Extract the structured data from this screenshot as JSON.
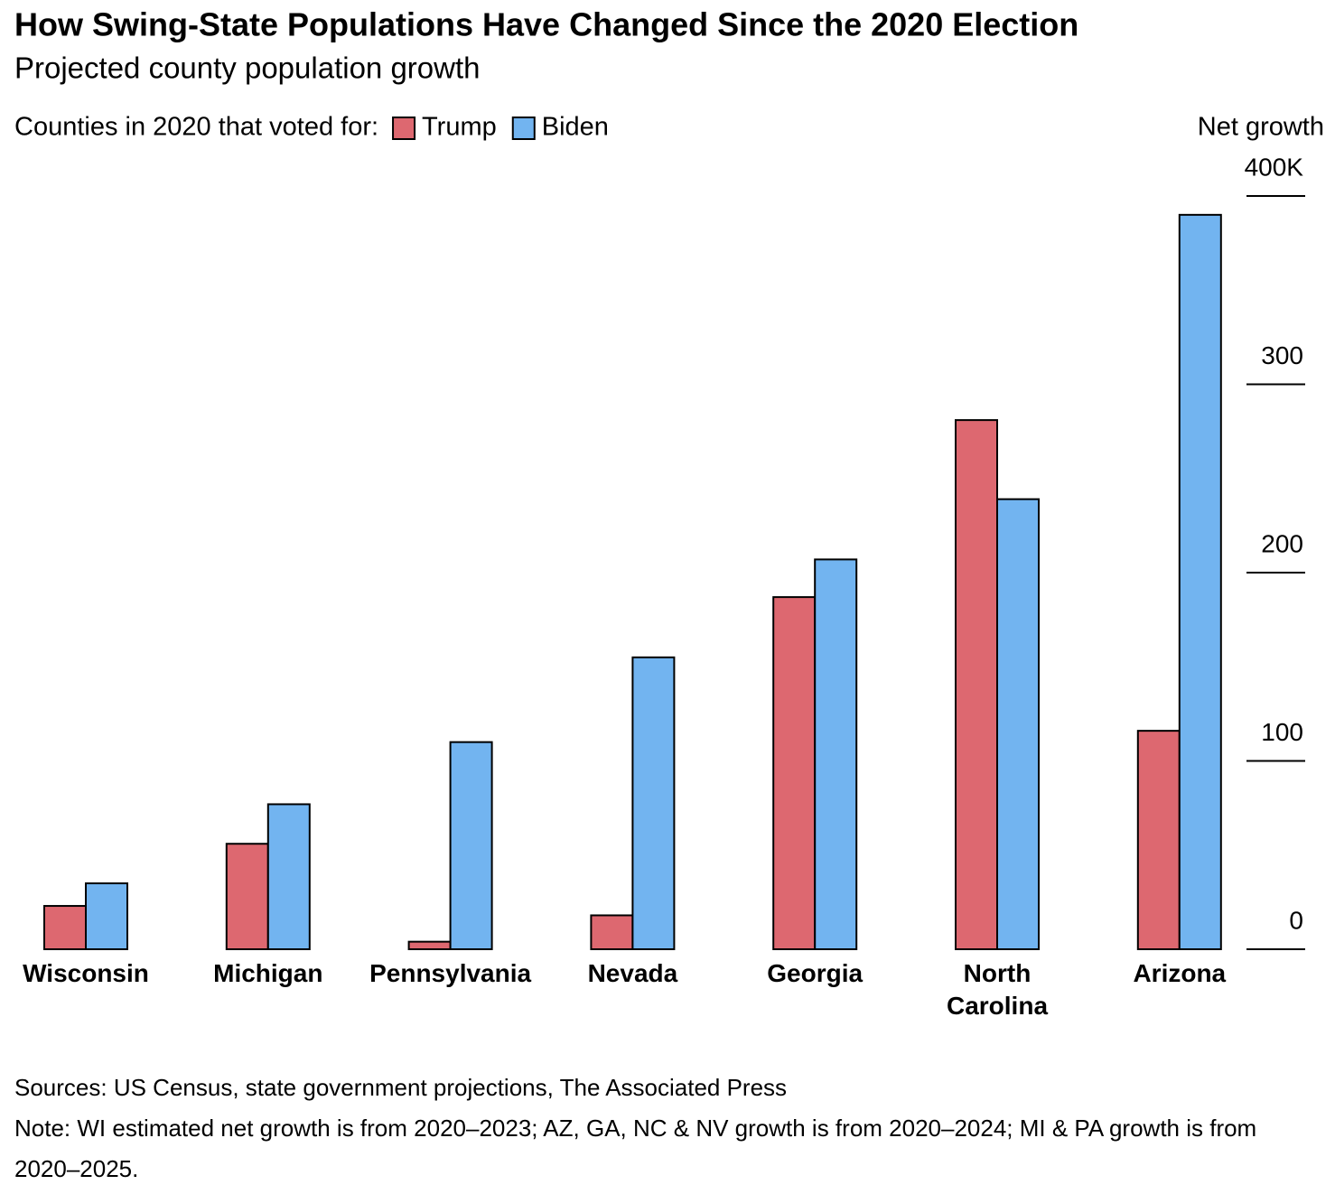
{
  "chart_data": {
    "type": "bar",
    "title": "How Swing-State Populations Have Changed Since the 2020 Election",
    "subtitle": "Projected county population growth",
    "legend_title": "Counties in 2020 that voted for:",
    "y_axis_label": "Net growth",
    "categories": [
      "Wisconsin",
      "Michigan",
      "Pennsylvania",
      "Nevada",
      "Georgia",
      "North Carolina",
      "Arizona"
    ],
    "series": [
      {
        "name": "Trump",
        "color": "#dd6870",
        "values": [
          23,
          56,
          4,
          18,
          187,
          281,
          116
        ]
      },
      {
        "name": "Biden",
        "color": "#72b4f0",
        "values": [
          35,
          77,
          110,
          155,
          207,
          239,
          390
        ]
      }
    ],
    "ylim": [
      0,
      400
    ],
    "yticks": [
      0,
      100,
      200,
      300,
      {
        "value": 400,
        "label": "400K"
      }
    ],
    "source": "Sources: US Census, state government projections, The Associated Press",
    "note": "Note: WI estimated net growth is from 2020–2023; AZ, GA, NC & NV growth is from 2020–2024; MI & PA growth is from 2020–2025."
  }
}
